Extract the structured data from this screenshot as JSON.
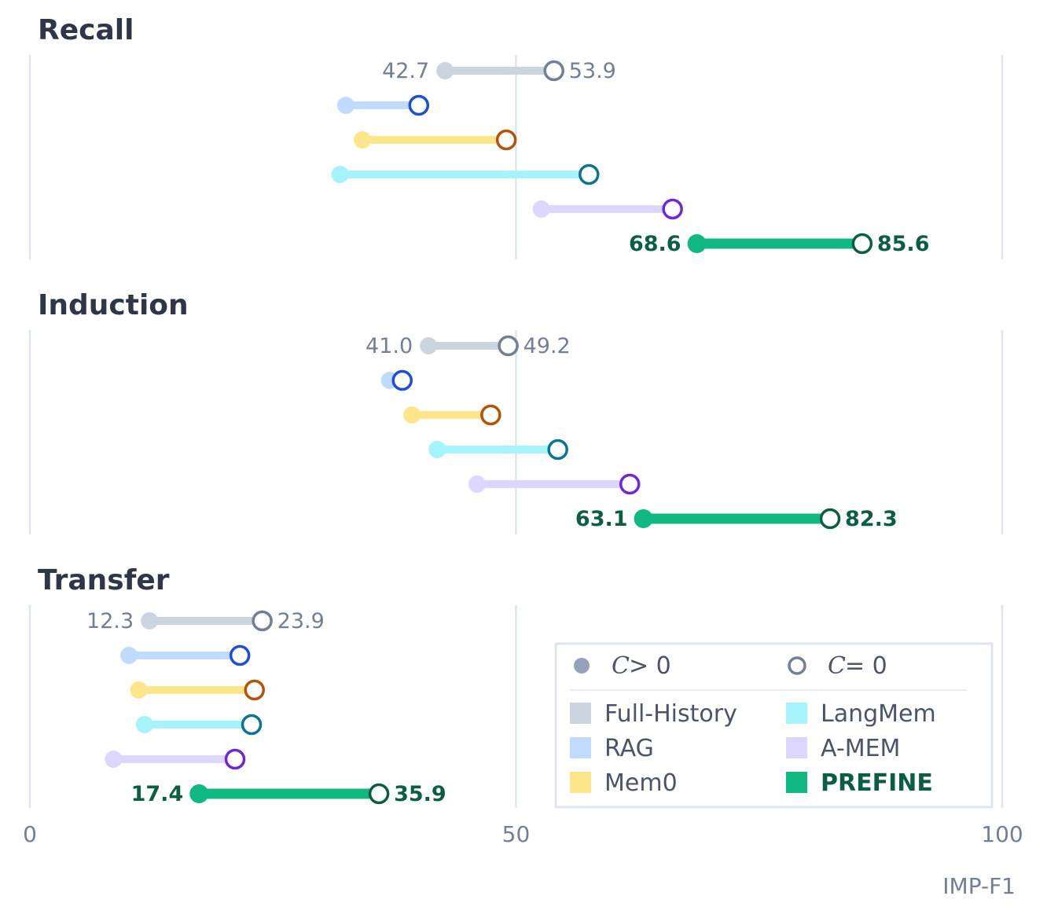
{
  "chart_data": {
    "type": "dumbbell",
    "xlabel": "IMP-F1",
    "xlim": [
      0,
      100
    ],
    "xticks": [
      0,
      50,
      100
    ],
    "grid": true,
    "legend_placement": "bottom-right",
    "markers": {
      "filled": {
        "var": "C",
        "label": " > 0"
      },
      "open": {
        "var": "C",
        "label": " = 0"
      }
    },
    "series": [
      {
        "name": "Full-History",
        "light": "#cbd5e0",
        "dark": "#718096"
      },
      {
        "name": "RAG",
        "light": "#bfdbfe",
        "dark": "#1d4ed8"
      },
      {
        "name": "Mem0",
        "light": "#fde68a",
        "dark": "#b45309"
      },
      {
        "name": "LangMem",
        "light": "#a5f3fc",
        "dark": "#0e7490"
      },
      {
        "name": "A-MEM",
        "light": "#ddd6fe",
        "dark": "#6d28d9"
      },
      {
        "name": "PRefine",
        "display": "PREFINE",
        "light": "#10b981",
        "dark": "#0b5e43"
      }
    ],
    "panels": [
      {
        "title": "Recall",
        "values": [
          {
            "series": "Full-History",
            "c_pos": 42.7,
            "c_zero": 53.9,
            "show_labels": true
          },
          {
            "series": "RAG",
            "c_pos": 32.5,
            "c_zero": 40.0
          },
          {
            "series": "Mem0",
            "c_pos": 34.2,
            "c_zero": 49.0
          },
          {
            "series": "LangMem",
            "c_pos": 31.9,
            "c_zero": 57.5
          },
          {
            "series": "A-MEM",
            "c_pos": 52.6,
            "c_zero": 66.1
          },
          {
            "series": "PRefine",
            "c_pos": 68.6,
            "c_zero": 85.6,
            "show_labels": true
          }
        ]
      },
      {
        "title": "Induction",
        "values": [
          {
            "series": "Full-History",
            "c_pos": 41.0,
            "c_zero": 49.2,
            "show_labels": true
          },
          {
            "series": "RAG",
            "c_pos": 37.0,
            "c_zero": 38.3
          },
          {
            "series": "Mem0",
            "c_pos": 39.3,
            "c_zero": 47.4
          },
          {
            "series": "LangMem",
            "c_pos": 41.9,
            "c_zero": 54.3
          },
          {
            "series": "A-MEM",
            "c_pos": 46.0,
            "c_zero": 61.7
          },
          {
            "series": "PRefine",
            "c_pos": 63.1,
            "c_zero": 82.3,
            "show_labels": true
          }
        ]
      },
      {
        "title": "Transfer",
        "values": [
          {
            "series": "Full-History",
            "c_pos": 12.3,
            "c_zero": 23.9,
            "show_labels": true
          },
          {
            "series": "RAG",
            "c_pos": 10.2,
            "c_zero": 21.6
          },
          {
            "series": "Mem0",
            "c_pos": 11.2,
            "c_zero": 23.1
          },
          {
            "series": "LangMem",
            "c_pos": 11.8,
            "c_zero": 22.8
          },
          {
            "series": "A-MEM",
            "c_pos": 8.6,
            "c_zero": 21.1
          },
          {
            "series": "PRefine",
            "c_pos": 17.4,
            "c_zero": 35.9,
            "show_labels": true
          }
        ]
      }
    ]
  }
}
